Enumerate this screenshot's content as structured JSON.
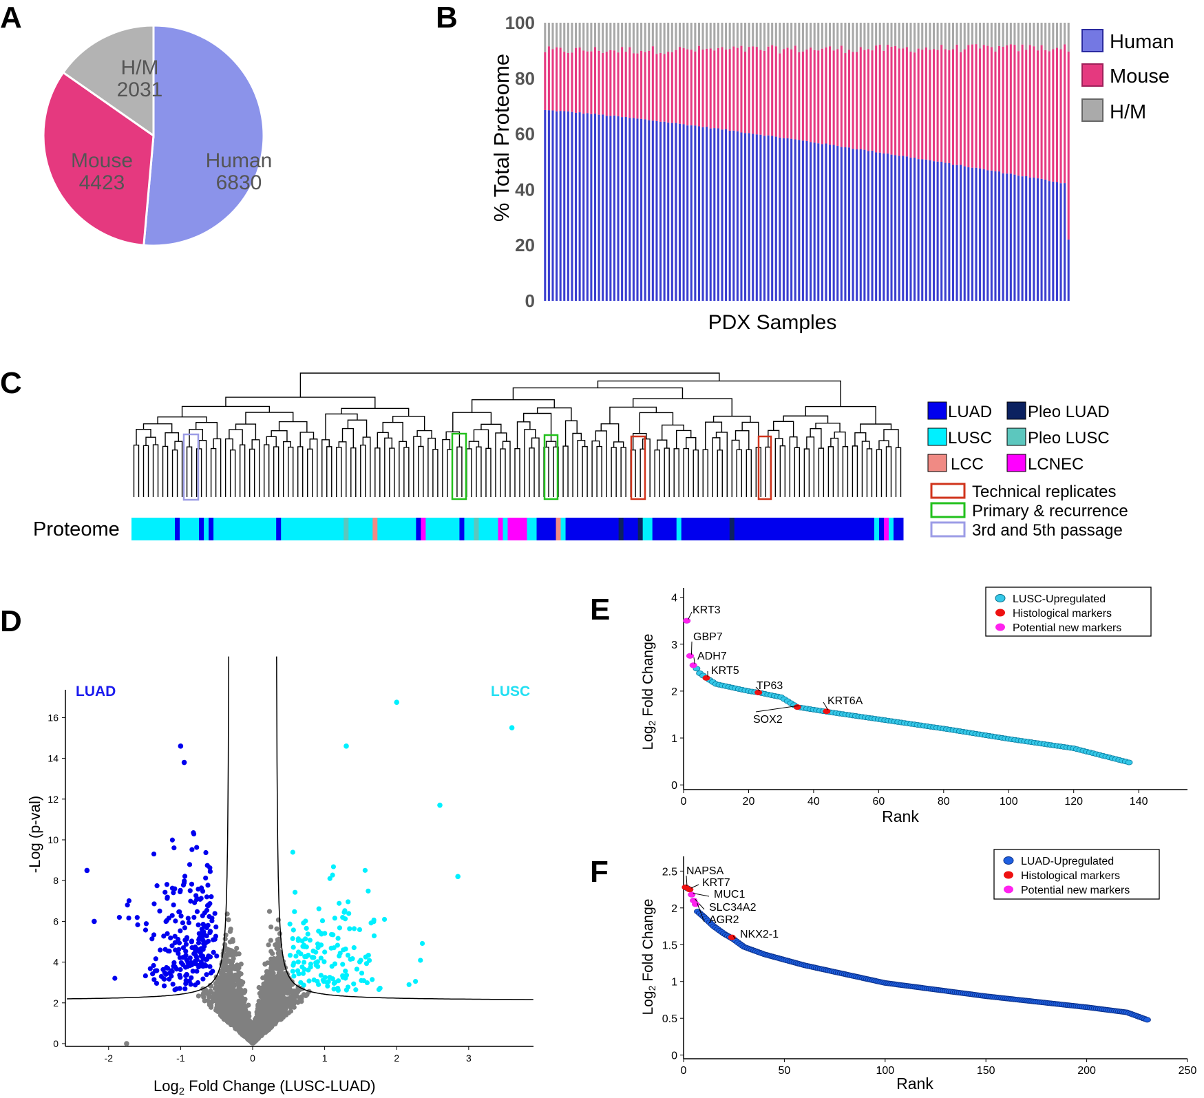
{
  "colors": {
    "human": "#8b93ea",
    "mouse": "#e5397f",
    "hm": "#b3b3b3",
    "bar_human": "#3a3ed0",
    "bar_mouse": "#e63981",
    "bar_hm": "#a8a8a8",
    "luad": "#0000ee",
    "lusc": "#00f0ff",
    "lcc": "#f08a84",
    "pleo_luad": "#0b2160",
    "pleo_lusc": "#5cc7be",
    "lcnec": "#ff00ff",
    "tech_rep": "#d0341c",
    "prim_rec": "#22c01c",
    "passage": "#9c9ce6",
    "grey_pt": "#808080",
    "e_point": "#35c8e8",
    "f_point": "#1e5fe0",
    "red_marker": "#ee1111",
    "magenta_marker": "#ff22ee"
  },
  "panels": {
    "a": "A",
    "b": "B",
    "c": "C",
    "d": "D",
    "e": "E",
    "f": "F"
  },
  "chart_data": [
    {
      "id": "A",
      "type": "pie",
      "slices": [
        {
          "label": "Human",
          "value": 6830
        },
        {
          "label": "Mouse",
          "value": 4423
        },
        {
          "label": "H/M",
          "value": 2031
        }
      ],
      "labels": {
        "human_name": "Human",
        "human_val": "6830",
        "mouse_name": "Mouse",
        "mouse_val": "4423",
        "hm_name": "H/M",
        "hm_val": "2031"
      }
    },
    {
      "id": "B",
      "type": "bar",
      "stacked": true,
      "n_samples": 137,
      "human_start": 68.5,
      "human_end": 42.0,
      "human_last": 22.0,
      "total_start": 90.0,
      "total_end": 91.0,
      "ylabel": "% Total Proteome",
      "xlabel": "PDX Samples",
      "ylim": [
        0,
        100
      ],
      "yticks": [
        "0",
        "20",
        "40",
        "60",
        "80",
        "100"
      ],
      "legend": [
        "Human",
        "Mouse",
        "H/M"
      ]
    },
    {
      "id": "C",
      "type": "dendrogram",
      "row_label": "Proteome",
      "n_leaves": 160,
      "legend": [
        "LUAD",
        "Pleo LUAD",
        "LUSC",
        "Pleo LUSC",
        "LCC",
        "LCNEC",
        "Technical replicates",
        "Primary & recurrence",
        "3rd and 5th passage"
      ],
      "segments": [
        [
          "lusc",
          0,
          9
        ],
        [
          "luad",
          9,
          10
        ],
        [
          "lusc",
          10,
          14
        ],
        [
          "luad",
          14,
          15
        ],
        [
          "lusc",
          15,
          16
        ],
        [
          "luad",
          16,
          17
        ],
        [
          "lusc",
          17,
          30
        ],
        [
          "luad",
          30,
          31
        ],
        [
          "lusc",
          31,
          44
        ],
        [
          "pleo_lusc",
          44,
          45
        ],
        [
          "lusc",
          45,
          50
        ],
        [
          "lcc",
          50,
          51
        ],
        [
          "lusc",
          51,
          59
        ],
        [
          "luad",
          59,
          60
        ],
        [
          "lcnec",
          60,
          61
        ],
        [
          "lusc",
          61,
          68
        ],
        [
          "luad",
          68,
          69
        ],
        [
          "lusc",
          69,
          71
        ],
        [
          "pleo_lusc",
          71,
          72
        ],
        [
          "lusc",
          72,
          76
        ],
        [
          "lcnec",
          76,
          77
        ],
        [
          "lusc",
          77,
          78
        ],
        [
          "lcnec",
          78,
          82
        ],
        [
          "lusc",
          82,
          84
        ],
        [
          "luad",
          84,
          88
        ],
        [
          "lcc",
          88,
          89
        ],
        [
          "lusc",
          89,
          90
        ],
        [
          "luad",
          90,
          101
        ],
        [
          "pleo_luad",
          101,
          102
        ],
        [
          "luad",
          102,
          105
        ],
        [
          "pleo_luad",
          105,
          106
        ],
        [
          "lusc",
          106,
          108
        ],
        [
          "luad",
          108,
          113
        ],
        [
          "lusc",
          113,
          114
        ],
        [
          "luad",
          114,
          124
        ],
        [
          "pleo_luad",
          124,
          125
        ],
        [
          "luad",
          125,
          154
        ],
        [
          "lusc",
          154,
          155
        ],
        [
          "luad",
          155,
          156
        ],
        [
          "lcnec",
          156,
          157
        ],
        [
          "lusc",
          157,
          158
        ],
        [
          "luad",
          158,
          160
        ]
      ]
    },
    {
      "id": "D",
      "type": "scatter",
      "subtype": "volcano",
      "xlabel_main": "Log",
      "xlabel_sub": "2",
      "xlabel_rest": " Fold Change (LUSC-LUAD)",
      "ylabel": "-Log (p-val)",
      "xlim": [
        -2.6,
        3.9
      ],
      "ylim": [
        0,
        17.5
      ],
      "xticks": [
        -2,
        -1,
        0,
        1,
        2,
        3
      ],
      "yticks": [
        0,
        2,
        4,
        6,
        8,
        10,
        12,
        14,
        16
      ],
      "group_left": "LUAD",
      "group_right": "LUSC",
      "extra_points": [
        {
          "x": 2.0,
          "y": 16.75,
          "group": "lusc"
        },
        {
          "x": 3.6,
          "y": 15.5,
          "group": "lusc"
        },
        {
          "x": 1.3,
          "y": 14.6,
          "group": "lusc"
        },
        {
          "x": 2.6,
          "y": 11.7,
          "group": "lusc"
        },
        {
          "x": 2.85,
          "y": 8.2,
          "group": "lusc"
        },
        {
          "x": -1.0,
          "y": 14.6,
          "group": "luad"
        },
        {
          "x": -0.95,
          "y": 13.8,
          "group": "luad"
        },
        {
          "x": -2.3,
          "y": 8.5,
          "group": "luad"
        },
        {
          "x": -2.2,
          "y": 6.0,
          "group": "luad"
        },
        {
          "x": -1.75,
          "y": 0.0,
          "group": "grey"
        }
      ]
    },
    {
      "id": "E",
      "type": "scatter",
      "subtype": "rank",
      "n_points": 137,
      "xlabel": "Rank",
      "ylabel_main": "Log",
      "ylabel_sub": "2",
      "ylabel_rest": " Fold Change",
      "xlim": [
        0,
        155
      ],
      "ylim": [
        -0.1,
        4.2
      ],
      "xticks": [
        0,
        20,
        40,
        60,
        80,
        100,
        120,
        140
      ],
      "yticks": [
        0,
        1,
        2,
        3,
        4
      ],
      "anchors": [
        [
          1,
          3.5
        ],
        [
          2,
          2.75
        ],
        [
          3,
          2.55
        ],
        [
          4,
          2.48
        ],
        [
          5,
          2.38
        ],
        [
          7,
          2.28
        ],
        [
          10,
          2.15
        ],
        [
          20,
          2.0
        ],
        [
          23,
          1.97
        ],
        [
          30,
          1.87
        ],
        [
          35,
          1.66
        ],
        [
          45,
          1.55
        ],
        [
          60,
          1.4
        ],
        [
          80,
          1.2
        ],
        [
          100,
          0.98
        ],
        [
          120,
          0.78
        ],
        [
          137,
          0.48
        ]
      ],
      "markers": [
        {
          "rank": 1,
          "value": 3.5,
          "label": "KRT3",
          "kind": "new"
        },
        {
          "rank": 2,
          "value": 2.75,
          "label": "GBP7",
          "kind": "new"
        },
        {
          "rank": 3,
          "value": 2.55,
          "label": "ADH7",
          "kind": "new"
        },
        {
          "rank": 7,
          "value": 2.28,
          "label": "KRT5",
          "kind": "hist"
        },
        {
          "rank": 23,
          "value": 1.97,
          "label": "TP63",
          "kind": "hist"
        },
        {
          "rank": 35,
          "value": 1.66,
          "label": "SOX2",
          "kind": "hist"
        },
        {
          "rank": 44,
          "value": 1.57,
          "label": "KRT6A",
          "kind": "hist"
        }
      ],
      "legend": [
        "LUSC-Upregulated",
        "Histological markers",
        "Potential new markers"
      ]
    },
    {
      "id": "F",
      "type": "scatter",
      "subtype": "rank",
      "n_points": 230,
      "xlabel": "Rank",
      "ylabel_main": "Log",
      "ylabel_sub": "2",
      "ylabel_rest": " Fold Change",
      "xlim": [
        0,
        250
      ],
      "ylim": [
        -0.05,
        2.7
      ],
      "xticks": [
        0,
        50,
        100,
        150,
        200,
        250
      ],
      "yticks": [
        0,
        0.5,
        1,
        1.5,
        2,
        2.5
      ],
      "ytick_labels": [
        "0",
        "0.5",
        "1",
        "1.5",
        "2",
        "2.5"
      ],
      "anchors": [
        [
          1,
          2.28
        ],
        [
          3,
          2.25
        ],
        [
          4,
          2.18
        ],
        [
          5,
          2.1
        ],
        [
          6,
          2.05
        ],
        [
          7,
          1.95
        ],
        [
          10,
          1.88
        ],
        [
          15,
          1.75
        ],
        [
          20,
          1.65
        ],
        [
          25,
          1.57
        ],
        [
          30,
          1.47
        ],
        [
          40,
          1.37
        ],
        [
          60,
          1.22
        ],
        [
          100,
          0.98
        ],
        [
          150,
          0.8
        ],
        [
          200,
          0.65
        ],
        [
          220,
          0.58
        ],
        [
          230,
          0.48
        ]
      ],
      "markers": [
        {
          "rank": 1,
          "value": 2.28,
          "label": "NAPSA",
          "kind": "hist"
        },
        {
          "rank": 3,
          "value": 2.25,
          "label": "KRT7",
          "kind": "hist"
        },
        {
          "rank": 4,
          "value": 2.18,
          "label": "MUC1",
          "kind": "new"
        },
        {
          "rank": 5,
          "value": 2.1,
          "label": "SLC34A2",
          "kind": "new"
        },
        {
          "rank": 6,
          "value": 2.05,
          "label": "AGR2",
          "kind": "new"
        },
        {
          "rank": 24,
          "value": 1.6,
          "label": "NKX2-1",
          "kind": "hist"
        }
      ],
      "legend": [
        "LUAD-Upregulated",
        "Histological markers",
        "Potential new markers"
      ]
    }
  ]
}
